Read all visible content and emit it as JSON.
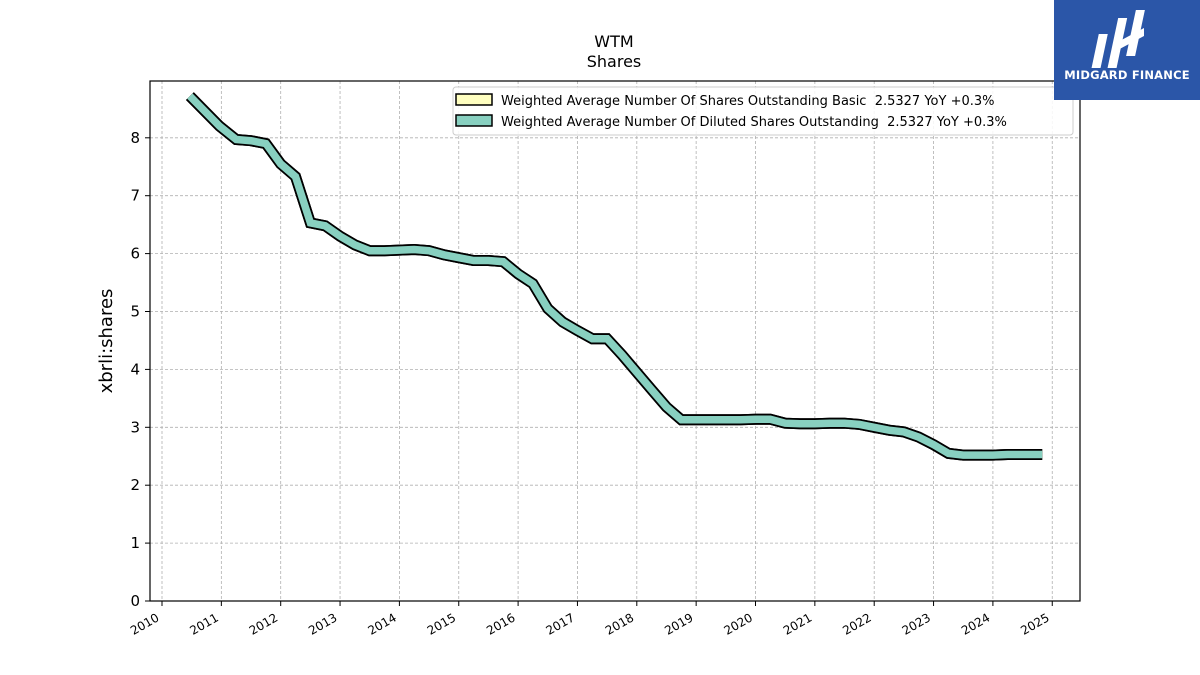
{
  "logo": {
    "text": "MIDGARD FINANCE",
    "background": "#2b56a8",
    "icon": "midgard-logo-icon"
  },
  "chart_data": {
    "type": "line",
    "title": "WTM",
    "subtitle": "Shares",
    "xlabel": "",
    "ylabel": "xbrli:shares",
    "xlim": [
      2009.8,
      2025.35
    ],
    "ylim": [
      0,
      9
    ],
    "grid": true,
    "legend_position": "top-right",
    "x_ticks": [
      "2010",
      "2011",
      "2012",
      "2013",
      "2014",
      "2015",
      "2016",
      "2017",
      "2018",
      "2019",
      "2020",
      "2021",
      "2022",
      "2023",
      "2024",
      "2025"
    ],
    "y_ticks": [
      "0",
      "1",
      "2",
      "3",
      "4",
      "5",
      "6",
      "7",
      "8"
    ],
    "series": [
      {
        "name": "Weighted Average Number Of Shares Outstanding Basic  2.5327 YoY +0.3%",
        "color": "#ffffc0",
        "x": [
          2010.47,
          2010.97,
          2011.25,
          2011.5,
          2011.75,
          2012.0,
          2012.25,
          2012.5,
          2012.75,
          2013.0,
          2013.25,
          2013.5,
          2013.75,
          2014.0,
          2014.25,
          2014.5,
          2014.75,
          2015.0,
          2015.25,
          2015.5,
          2015.75,
          2016.0,
          2016.25,
          2016.5,
          2016.75,
          2017.0,
          2017.25,
          2017.5,
          2017.75,
          2018.0,
          2018.25,
          2018.5,
          2018.75,
          2019.0,
          2019.25,
          2019.5,
          2019.75,
          2020.0,
          2020.25,
          2020.5,
          2020.75,
          2021.0,
          2021.25,
          2021.5,
          2021.75,
          2022.0,
          2022.25,
          2022.5,
          2022.75,
          2023.0,
          2023.25,
          2023.5,
          2023.75,
          2024.0,
          2024.25,
          2024.5,
          2024.83
        ],
        "values": [
          8.72,
          8.2,
          7.97,
          7.95,
          7.9,
          7.55,
          7.33,
          6.53,
          6.48,
          6.3,
          6.15,
          6.05,
          6.05,
          6.06,
          6.07,
          6.05,
          5.98,
          5.93,
          5.88,
          5.88,
          5.86,
          5.65,
          5.48,
          5.05,
          4.82,
          4.67,
          4.53,
          4.53,
          4.25,
          3.95,
          3.65,
          3.35,
          3.13,
          3.13,
          3.13,
          3.13,
          3.13,
          3.14,
          3.14,
          3.07,
          3.06,
          3.06,
          3.07,
          3.07,
          3.05,
          3.0,
          2.95,
          2.92,
          2.83,
          2.7,
          2.55,
          2.52,
          2.52,
          2.52,
          2.53,
          2.53,
          2.53
        ]
      },
      {
        "name": "Weighted Average Number Of Diluted Shares Outstanding  2.5327 YoY +0.3%",
        "color": "#88d0c0",
        "x": [
          2010.47,
          2010.97,
          2011.25,
          2011.5,
          2011.75,
          2012.0,
          2012.25,
          2012.5,
          2012.75,
          2013.0,
          2013.25,
          2013.5,
          2013.75,
          2014.0,
          2014.25,
          2014.5,
          2014.75,
          2015.0,
          2015.25,
          2015.5,
          2015.75,
          2016.0,
          2016.25,
          2016.5,
          2016.75,
          2017.0,
          2017.25,
          2017.5,
          2017.75,
          2018.0,
          2018.25,
          2018.5,
          2018.75,
          2019.0,
          2019.25,
          2019.5,
          2019.75,
          2020.0,
          2020.25,
          2020.5,
          2020.75,
          2021.0,
          2021.25,
          2021.5,
          2021.75,
          2022.0,
          2022.25,
          2022.5,
          2022.75,
          2023.0,
          2023.25,
          2023.5,
          2023.75,
          2024.0,
          2024.25,
          2024.5,
          2024.83
        ],
        "values": [
          8.72,
          8.2,
          7.97,
          7.95,
          7.9,
          7.55,
          7.33,
          6.53,
          6.48,
          6.3,
          6.15,
          6.05,
          6.05,
          6.06,
          6.07,
          6.05,
          5.98,
          5.93,
          5.88,
          5.88,
          5.86,
          5.65,
          5.48,
          5.05,
          4.82,
          4.67,
          4.53,
          4.53,
          4.25,
          3.95,
          3.65,
          3.35,
          3.13,
          3.13,
          3.13,
          3.13,
          3.13,
          3.14,
          3.14,
          3.07,
          3.06,
          3.06,
          3.07,
          3.07,
          3.05,
          3.0,
          2.95,
          2.92,
          2.83,
          2.7,
          2.55,
          2.52,
          2.52,
          2.52,
          2.53,
          2.53,
          2.53
        ]
      }
    ]
  }
}
